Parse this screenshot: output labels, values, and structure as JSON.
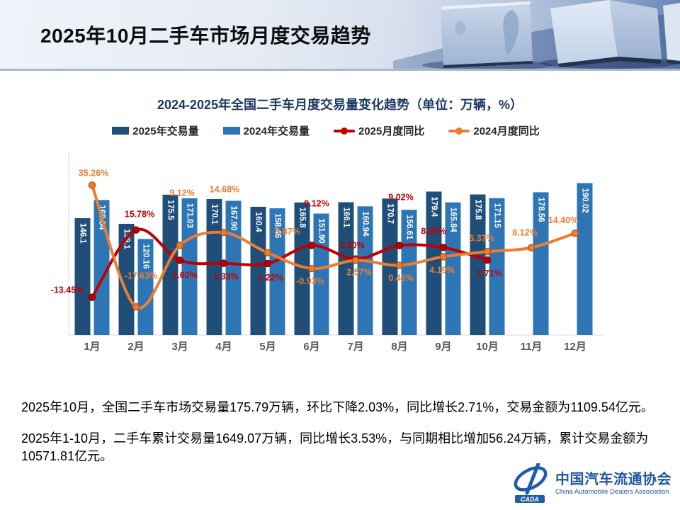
{
  "header": {
    "title": "2025年10月二手车市场月度交易趋势"
  },
  "chart": {
    "title": "2024-2025年全国二手车月度交易量变化趋势（单位：万辆，%）",
    "legend": [
      {
        "label": "2025年交易量",
        "type": "bar",
        "color": "#1F4E79"
      },
      {
        "label": "2024年交易量",
        "type": "bar",
        "color": "#2E75B6"
      },
      {
        "label": "2025月度同比",
        "type": "line",
        "color": "#C00000"
      },
      {
        "label": "2024月度同比",
        "type": "line",
        "color": "#ED7D31"
      }
    ]
  },
  "chart_data": {
    "type": "combo_bar_line",
    "title": "2024-2025年全国二手车月度交易量变化趋势",
    "unit_note": "单位：万辆，%",
    "grid": false,
    "categories": [
      "1月",
      "2月",
      "3月",
      "4月",
      "5月",
      "6月",
      "7月",
      "8月",
      "9月",
      "10月",
      "11月",
      "12月"
    ],
    "series": [
      {
        "name": "2025年交易量",
        "type": "bar",
        "color": "#1F4E79",
        "values": [
          146.1,
          139.1,
          175.5,
          170.1,
          160.4,
          165.8,
          166.1,
          170.7,
          179.4,
          175.8,
          null,
          null
        ],
        "value_labels": [
          "146.1",
          "139.1",
          "175.5",
          "170.1",
          "160.4",
          "165.8",
          "166.1",
          "170.7",
          "179.4",
          "175.8",
          null,
          null
        ]
      },
      {
        "name": "2024年交易量",
        "type": "bar",
        "color": "#2E75B6",
        "values": [
          168.84,
          120.16,
          171.03,
          167.9,
          158.46,
          151.9,
          160.94,
          156.61,
          165.84,
          171.15,
          178.56,
          190.02
        ],
        "value_labels": [
          "168.84",
          "120.16",
          "171.03",
          "167.90",
          "158.46",
          "151.90",
          "160.94",
          "156.61",
          "165.84",
          "171.15",
          "178.56",
          "190.02"
        ]
      },
      {
        "name": "2025月度同比",
        "type": "line",
        "color": "#C00000",
        "marker_stroke": "#8E0000",
        "values": [
          -13.45,
          15.78,
          2.6,
          1.33,
          1.22,
          9.12,
          3.2,
          9.02,
          8.2,
          2.71,
          null,
          null
        ],
        "value_labels": [
          "-13.45%",
          "15.78%",
          "2.60%",
          "1.33%",
          "1.22%",
          "9.12%",
          "3.20%",
          "9.02%",
          "8.20%",
          "2.71%",
          null,
          null
        ],
        "label_offsets": [
          [
            -35,
            -10
          ],
          [
            5,
            -22
          ],
          [
            7,
            21
          ],
          [
            3,
            19
          ],
          [
            4,
            20
          ],
          [
            7,
            -59
          ],
          [
            -5,
            -19
          ],
          [
            2,
            -68
          ],
          [
            -14,
            -23
          ],
          [
            3,
            19
          ],
          null,
          null
        ]
      },
      {
        "name": "2024月度同比",
        "type": "line",
        "color": "#ED7D31",
        "marker_stroke": "#C55A11",
        "values": [
          35.26,
          -17.63,
          9.12,
          14.68,
          5.87,
          -0.93,
          2.57,
          0.43,
          4.19,
          6.37,
          8.12,
          14.4
        ],
        "value_labels": [
          "35.26%",
          "-17.63%",
          "9.12%",
          "14.68%",
          "5.87%",
          "-0.93%",
          "2.57%",
          "0.43%",
          "4.19%",
          "6.37%",
          "8.12%",
          "14.40%"
        ],
        "label_offsets": [
          [
            2,
            -17
          ],
          [
            7,
            -44
          ],
          [
            3,
            -74
          ],
          [
            1,
            -61
          ],
          [
            28,
            -30
          ],
          [
            -2,
            18
          ],
          [
            5,
            17
          ],
          [
            2,
            18
          ],
          [
            -2,
            19
          ],
          [
            -8,
            -19
          ],
          [
            -9,
            -21
          ],
          [
            -17,
            -18
          ]
        ]
      }
    ]
  },
  "notes": {
    "line1": "2025年10月，全国二手车市场交易量175.79万辆，环比下降2.03%，同比增长2.71%，交易金额为1109.54亿元。",
    "line2": "2025年1-10月，二手车累计交易量1649.07万辆，同比增长3.53%，与同期相比增加56.24万辆，累计交易金额为10571.81亿元。"
  },
  "logo": {
    "abbr": "CADA",
    "org_cn": "中国汽车流通协会",
    "org_en": "China Automobile Dealers Association"
  }
}
